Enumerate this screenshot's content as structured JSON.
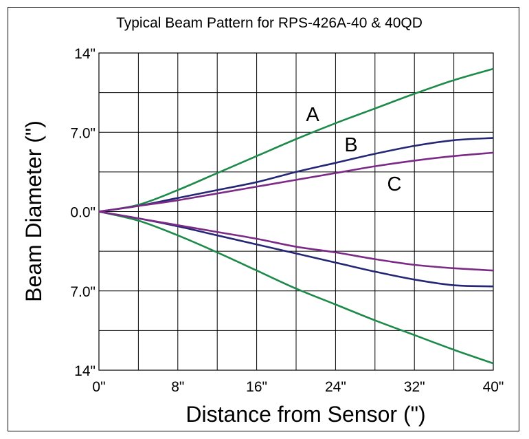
{
  "chart_data": {
    "type": "line",
    "title": "Typical Beam Pattern for RPS-426A-40 & 40QD",
    "xlabel": "Distance from Sensor (\")",
    "ylabel": "Beam Diameter (\")",
    "xlim": [
      0,
      40
    ],
    "ylim": [
      -14,
      14
    ],
    "grid": true,
    "x_tick_values": [
      0,
      8,
      16,
      24,
      32,
      40
    ],
    "x_tick_labels": [
      "0\"",
      "8\"",
      "16\"",
      "24\"",
      "32\"",
      "40\""
    ],
    "y_tick_values": [
      14,
      7,
      0,
      -7,
      -14
    ],
    "y_tick_labels": [
      "14\"",
      "7.0\"",
      "0.0\"",
      "7.0\"",
      "14\""
    ],
    "series": [
      {
        "name": "A",
        "color": "#1d8a4a",
        "upper": {
          "x": [
            0,
            4,
            8,
            12,
            16,
            20,
            24,
            28,
            32,
            36,
            40
          ],
          "y": [
            0,
            0.6,
            1.9,
            3.4,
            4.9,
            6.4,
            7.8,
            9.1,
            10.4,
            11.6,
            12.6
          ]
        },
        "lower": {
          "x": [
            0,
            4,
            8,
            12,
            16,
            20,
            24,
            28,
            32,
            36,
            40
          ],
          "y": [
            0,
            -0.8,
            -2.1,
            -3.6,
            -5.2,
            -6.8,
            -8.2,
            -9.6,
            -10.9,
            -12.2,
            -13.4
          ]
        }
      },
      {
        "name": "B",
        "color": "#262676",
        "upper": {
          "x": [
            0,
            4,
            8,
            12,
            16,
            20,
            24,
            28,
            32,
            36,
            40
          ],
          "y": [
            0,
            0.5,
            1.2,
            1.9,
            2.6,
            3.5,
            4.3,
            5.1,
            5.8,
            6.3,
            6.5
          ]
        },
        "lower": {
          "x": [
            0,
            4,
            8,
            12,
            16,
            20,
            24,
            28,
            32,
            36,
            40
          ],
          "y": [
            0,
            -0.6,
            -1.3,
            -2.1,
            -2.9,
            -3.7,
            -4.5,
            -5.3,
            -6.0,
            -6.5,
            -6.6
          ]
        }
      },
      {
        "name": "C",
        "color": "#7b2a86",
        "upper": {
          "x": [
            0,
            4,
            8,
            12,
            16,
            20,
            24,
            28,
            32,
            36,
            40
          ],
          "y": [
            0,
            0.5,
            1.0,
            1.6,
            2.2,
            2.8,
            3.4,
            4.0,
            4.5,
            4.9,
            5.2
          ]
        },
        "lower": {
          "x": [
            0,
            4,
            8,
            12,
            16,
            20,
            24,
            28,
            32,
            36,
            40
          ],
          "y": [
            0,
            -0.6,
            -1.2,
            -1.8,
            -2.4,
            -3.1,
            -3.6,
            -4.2,
            -4.7,
            -5.0,
            -5.2
          ]
        }
      }
    ]
  }
}
